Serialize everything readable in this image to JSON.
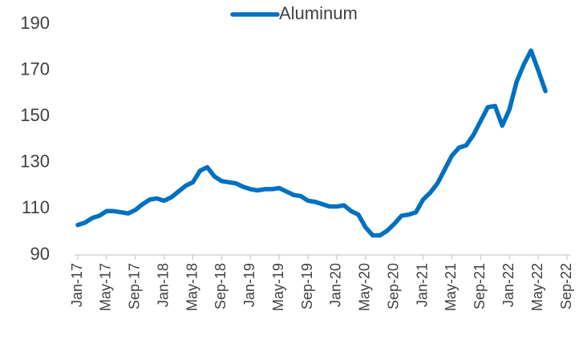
{
  "chart_data": {
    "type": "line",
    "categories": [
      "Jan-17",
      null,
      null,
      null,
      "May-17",
      null,
      null,
      null,
      "Sep-17",
      null,
      null,
      null,
      "Jan-18",
      null,
      null,
      null,
      "May-18",
      null,
      null,
      null,
      "Sep-18",
      null,
      null,
      null,
      "Jan-19",
      null,
      null,
      null,
      "May-19",
      null,
      null,
      null,
      "Sep-19",
      null,
      null,
      null,
      "Jan-20",
      null,
      null,
      null,
      "May-20",
      null,
      null,
      null,
      "Sep-20",
      null,
      null,
      null,
      "Jan-21",
      null,
      null,
      null,
      "May-21",
      null,
      null,
      null,
      "Sep-21",
      null,
      null,
      null,
      "Jan-22",
      null,
      null,
      null,
      "May-22",
      null,
      null,
      null,
      "Sep-22"
    ],
    "series": [
      {
        "name": "Aluminum",
        "color": "#0070c0",
        "values": [
          103,
          104,
          106,
          107,
          109,
          109,
          108.5,
          108,
          109.5,
          112,
          114,
          114.5,
          113.5,
          115,
          117.5,
          120,
          121.5,
          126.5,
          128,
          124,
          122,
          121.5,
          121,
          119.5,
          118.5,
          118,
          118.5,
          118.5,
          119,
          117.5,
          116,
          115.5,
          113.5,
          113,
          112,
          111,
          111,
          111.5,
          109,
          107.5,
          102,
          98.5,
          98.5,
          100.5,
          103.5,
          107,
          107.5,
          108.5,
          114,
          117,
          121,
          127,
          133,
          136.5,
          137.5,
          142,
          148,
          154,
          154.5,
          146,
          153,
          165,
          172.5,
          178.5,
          170,
          161,
          null,
          null,
          null
        ]
      }
    ],
    "ylim": [
      90,
      190
    ],
    "yticks": [
      90,
      110,
      130,
      150,
      170,
      190
    ],
    "legend": "top",
    "grid": false
  }
}
